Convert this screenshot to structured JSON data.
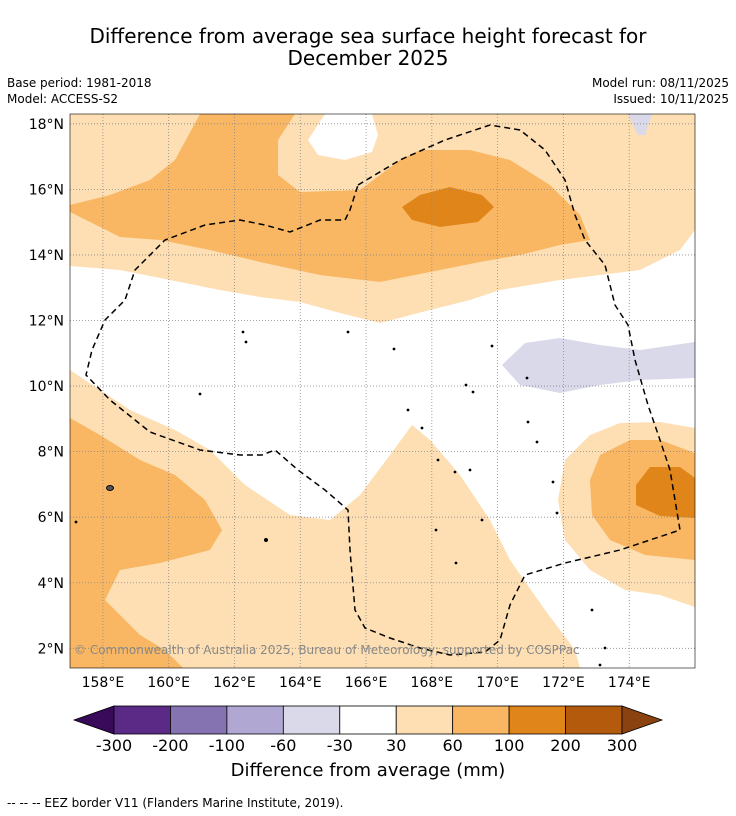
{
  "title": {
    "line1": "Difference from average sea surface height forecast for",
    "line2": "December 2025"
  },
  "meta": {
    "base_period": "Base period: 1981-2018",
    "model": "Model: ACCESS-S2",
    "model_run": "Model run: 08/11/2025",
    "issued": "Issued: 10/11/2025"
  },
  "map": {
    "lon_range": [
      157,
      176
    ],
    "lat_range": [
      1.4,
      18.3
    ],
    "lat_ticks": [
      {
        "value": 18,
        "label": "18°N"
      },
      {
        "value": 16,
        "label": "16°N"
      },
      {
        "value": 14,
        "label": "14°N"
      },
      {
        "value": 12,
        "label": "12°N"
      },
      {
        "value": 10,
        "label": "10°N"
      },
      {
        "value": 8,
        "label": "8°N"
      },
      {
        "value": 6,
        "label": "6°N"
      },
      {
        "value": 4,
        "label": "4°N"
      },
      {
        "value": 2,
        "label": "2°N"
      }
    ],
    "lon_ticks": [
      {
        "value": 158,
        "label": "158°E"
      },
      {
        "value": 160,
        "label": "160°E"
      },
      {
        "value": 162,
        "label": "162°E"
      },
      {
        "value": 164,
        "label": "164°E"
      },
      {
        "value": 166,
        "label": "166°E"
      },
      {
        "value": 168,
        "label": "168°E"
      },
      {
        "value": 170,
        "label": "170°E"
      },
      {
        "value": 172,
        "label": "172°E"
      },
      {
        "value": 174,
        "label": "174°E"
      }
    ],
    "copyright": "© Commonwealth of Australia 2025, Bureau of Meteorology; supported by COSPPac"
  },
  "colorbar": {
    "title": "Difference from average (mm)",
    "ticks": [
      "-300",
      "-200",
      "-100",
      "-60",
      "-30",
      "30",
      "60",
      "100",
      "200",
      "300"
    ],
    "colors": [
      "#5b2a86",
      "#8473b0",
      "#b0a8d2",
      "#d9d9ea",
      "#ffffff",
      "#fddfb3",
      "#f9b763",
      "#e08519",
      "#b45a0d"
    ],
    "extend_low_color": "#3a0a5a",
    "extend_high_color": "#8a4310"
  },
  "footer": "--  --  -- EEZ border V11 (Flanders Marine Institute, 2019)."
}
